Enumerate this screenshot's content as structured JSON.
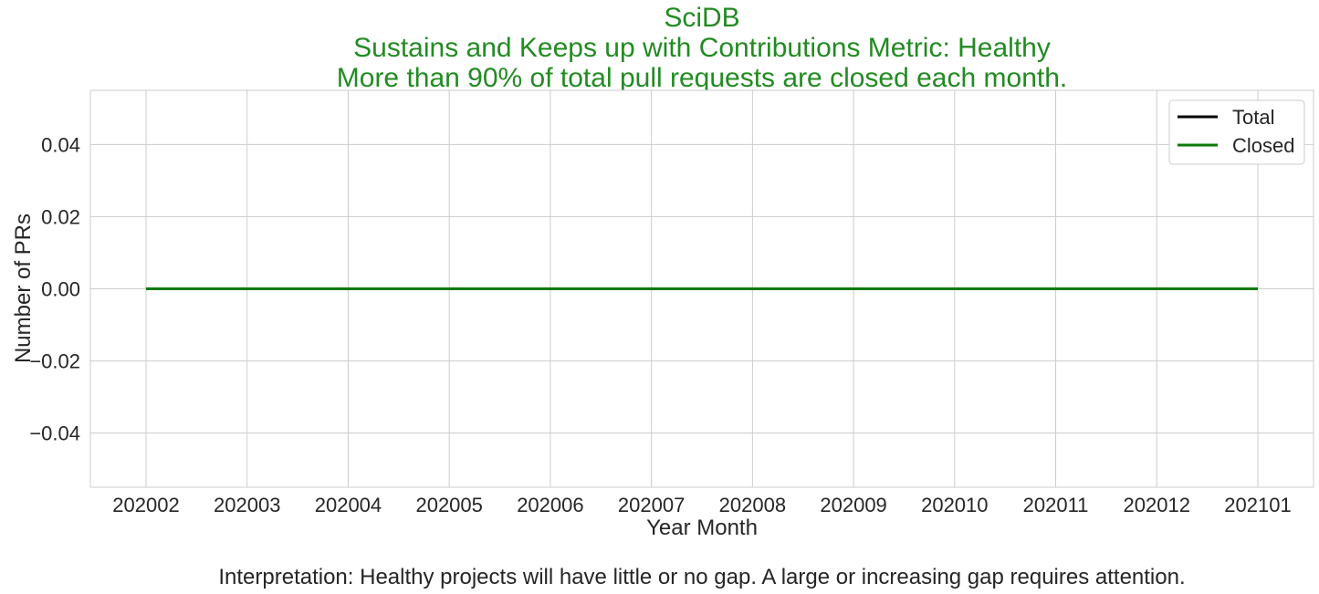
{
  "chart_data": {
    "type": "line",
    "title_lines": [
      "SciDB",
      "Sustains and Keeps up with Contributions Metric: Healthy",
      "More than 90% of total pull requests are closed each month."
    ],
    "title_color": "#228B22",
    "xlabel": "Year Month",
    "ylabel": "Number of PRs",
    "categories": [
      "202002",
      "202003",
      "202004",
      "202005",
      "202006",
      "202007",
      "202008",
      "202009",
      "202010",
      "202011",
      "202012",
      "202101"
    ],
    "ylim": [
      -0.055,
      0.055
    ],
    "yticks": [
      -0.04,
      -0.02,
      0.0,
      0.02,
      0.04
    ],
    "ytick_labels": [
      "−0.04",
      "−0.02",
      "0.00",
      "0.02",
      "0.04"
    ],
    "grid": true,
    "legend_position": "top-right",
    "series": [
      {
        "name": "Total",
        "color": "#000000",
        "values": [
          0,
          0,
          0,
          0,
          0,
          0,
          0,
          0,
          0,
          0,
          0,
          0
        ]
      },
      {
        "name": "Closed",
        "color": "#0a7a0a",
        "values": [
          0,
          0,
          0,
          0,
          0,
          0,
          0,
          0,
          0,
          0,
          0,
          0
        ]
      }
    ],
    "interpretation": "Interpretation: Healthy projects will have little or no gap. A large or increasing gap requires attention."
  }
}
